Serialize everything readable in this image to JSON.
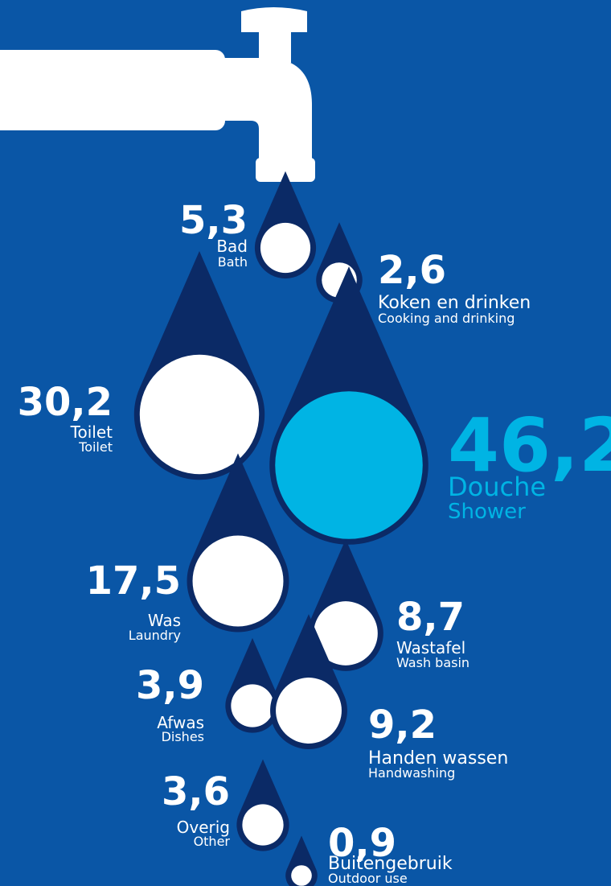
{
  "chart_data": {
    "type": "drops",
    "categories": [
      "Bad",
      "Koken en drinken",
      "Toilet",
      "Douche",
      "Was",
      "Wastafel",
      "Afwas",
      "Handen wassen",
      "Overig",
      "Buitengebruik"
    ],
    "subtitles": [
      "Bath",
      "Cooking and drinking",
      "Toilet",
      "Shower",
      "Laundry",
      "Wash basin",
      "Dishes",
      "Handwashing",
      "Other",
      "Outdoor use"
    ],
    "values": [
      5.3,
      2.6,
      30.2,
      46.2,
      17.5,
      8.7,
      3.9,
      9.2,
      3.6,
      0.9
    ],
    "value_labels": [
      "5,3",
      "2,6",
      "30,2",
      "46,2",
      "17,5",
      "8,7",
      "3,9",
      "9,2",
      "3,6",
      "0,9"
    ],
    "colors": [
      "#ffffff",
      "#ffffff",
      "#ffffff",
      "#00b4e4",
      "#ffffff",
      "#ffffff",
      "#ffffff",
      "#ffffff",
      "#ffffff",
      "#ffffff"
    ],
    "drop_color": "#0b2a66"
  }
}
